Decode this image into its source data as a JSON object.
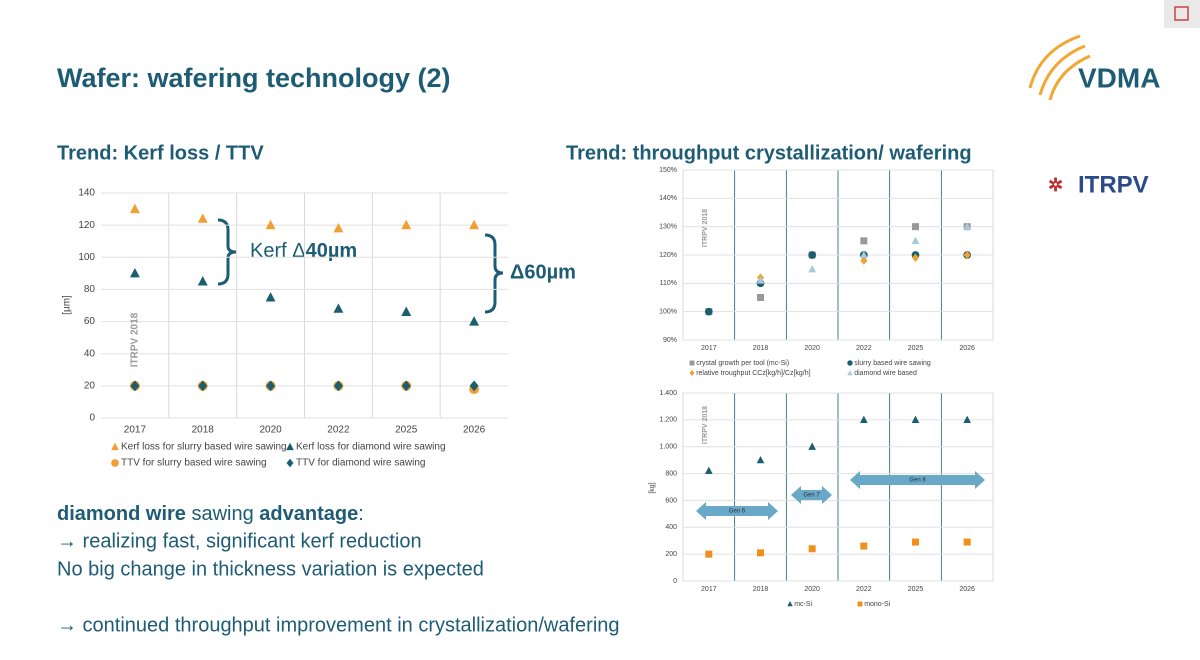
{
  "title": "Wafer: wafering technology (2)",
  "logos": [
    "VDMA",
    "ITRPV"
  ],
  "left_heading": "Trend: Kerf loss / TTV",
  "right_heading": "Trend: throughput crystallization/ wafering",
  "bullets": {
    "line1": [
      "diamond wire",
      " sawing ",
      "advantage",
      ":"
    ],
    "line2": "→ realizing fast, significant kerf reduction",
    "line3": "No big change in thickness variation is expected",
    "line4": "→ continued throughput improvement in crystallization/wafering"
  },
  "chart_data": [
    {
      "type": "scatter",
      "ylabel": "[µm]",
      "watermark": "ITRPV 2018",
      "categories": [
        "2017",
        "2018",
        "2020",
        "2022",
        "2025",
        "2026"
      ],
      "ylim": [
        0,
        140
      ],
      "yticks": [
        0,
        20,
        40,
        60,
        80,
        100,
        120,
        140
      ],
      "grid": true,
      "series": [
        {
          "name": "Kerf loss for slurry based wire sawing",
          "color": "#f0a030",
          "marker": "triangle",
          "values": [
            130,
            124,
            120,
            118,
            120,
            120
          ]
        },
        {
          "name": "Kerf loss for diamond wire sawing",
          "color": "#1a5e70",
          "marker": "triangle",
          "values": [
            90,
            85,
            75,
            68,
            66,
            60
          ]
        },
        {
          "name": "TTV for slurry based  wire sawing",
          "color": "#f0a030",
          "marker": "circle",
          "values": [
            20,
            20,
            20,
            20,
            20,
            18
          ]
        },
        {
          "name": "TTV for diamond wire sawing",
          "color": "#1a5e70",
          "marker": "diamond",
          "values": [
            20,
            20,
            20,
            20,
            20,
            20
          ]
        }
      ],
      "annotations": [
        [
          "Kerf Δ",
          "40µm"
        ],
        "Δ60µm"
      ]
    },
    {
      "type": "scatter",
      "watermark": "ITRPV 2018",
      "categories": [
        "2017",
        "2018",
        "2020",
        "2022",
        "2025",
        "2026"
      ],
      "ylim": [
        90,
        150
      ],
      "yticks": [
        {
          "value": 90,
          "label": "90%"
        },
        {
          "value": 100,
          "label": "100%"
        },
        {
          "value": 110,
          "label": "110%"
        },
        {
          "value": 120,
          "label": "120%"
        },
        {
          "value": 130,
          "label": "130%"
        },
        {
          "value": 140,
          "label": "140%"
        },
        {
          "value": 150,
          "label": "150%"
        }
      ],
      "grid": true,
      "series": [
        {
          "name": "crystal growth per tool (mc-Si)",
          "color": "#999999",
          "marker": "square",
          "values": [
            100,
            105,
            120,
            125,
            130,
            130
          ]
        },
        {
          "name": "slurry based wire sawing",
          "color": "#1a5e70",
          "marker": "circle",
          "values": [
            100,
            110,
            120,
            120,
            120,
            120
          ]
        },
        {
          "name": "relative troughput CCz[kg/h]/Cz[kg/h]",
          "color": "#f0a030",
          "marker": "diamond",
          "values": [
            null,
            112,
            null,
            118,
            119,
            120
          ]
        },
        {
          "name": "diamond wire based",
          "color": "#a8c8dc",
          "marker": "triangle",
          "values": [
            null,
            111,
            115,
            120,
            125,
            130
          ]
        }
      ]
    },
    {
      "type": "scatter",
      "ylabel": "[kg]",
      "watermark": "ITRPV 2018",
      "categories": [
        "2017",
        "2018",
        "2020",
        "2022",
        "2025",
        "2026"
      ],
      "ylim": [
        0,
        1400
      ],
      "yticks": [
        0,
        200,
        400,
        600,
        {
          "value": 800,
          "label": "800"
        },
        {
          "value": 1000,
          "label": "1.000"
        },
        {
          "value": 1200,
          "label": "1.200"
        },
        {
          "value": 1400,
          "label": "1.400"
        }
      ],
      "grid": true,
      "series": [
        {
          "name": "mc-Si",
          "color": "#1a5e70",
          "marker": "triangle",
          "values": [
            820,
            900,
            1000,
            1200,
            1200,
            1200
          ]
        },
        {
          "name": "mono-Si",
          "color": "#f0901a",
          "marker": "square",
          "values": [
            200,
            210,
            240,
            260,
            290,
            290
          ]
        }
      ],
      "annotations": [
        "Gen 6",
        "Gen 7",
        "Gen 8"
      ]
    }
  ]
}
